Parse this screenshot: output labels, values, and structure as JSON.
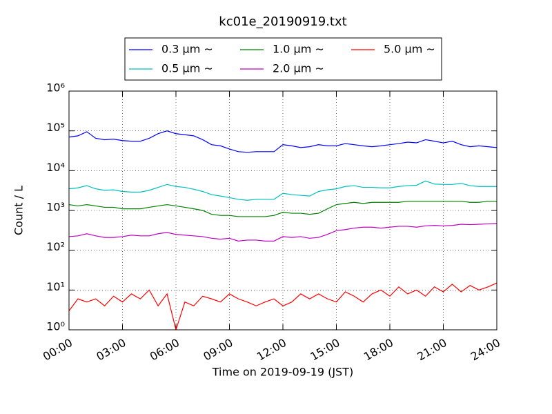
{
  "chart_data": {
    "type": "line",
    "title": "kc01e_20190919.txt",
    "xlabel": "Time on 2019-09-19 (JST)",
    "ylabel": "Count / L",
    "yscale": "log",
    "grid": true,
    "legend": "top",
    "x": [
      0,
      0.5,
      1,
      1.5,
      2,
      2.5,
      3,
      3.5,
      4,
      4.5,
      5,
      5.5,
      6,
      6.5,
      7,
      7.5,
      8,
      8.5,
      9,
      9.5,
      10,
      10.5,
      11,
      11.5,
      12,
      12.5,
      13,
      13.5,
      14,
      14.5,
      15,
      15.5,
      16,
      16.5,
      17,
      17.5,
      18,
      18.5,
      19,
      19.5,
      20,
      20.5,
      21,
      21.5,
      22,
      22.5,
      23,
      23.5,
      24
    ],
    "xlim": [
      0,
      24
    ],
    "xticks": [
      {
        "value": 0,
        "label": "00:00"
      },
      {
        "value": 3,
        "label": "03:00"
      },
      {
        "value": 6,
        "label": "06:00"
      },
      {
        "value": 9,
        "label": "09:00"
      },
      {
        "value": 12,
        "label": "12:00"
      },
      {
        "value": 15,
        "label": "15:00"
      },
      {
        "value": 18,
        "label": "18:00"
      },
      {
        "value": 21,
        "label": "21:00"
      },
      {
        "value": 24,
        "label": "24:00"
      }
    ],
    "ylim": [
      1,
      1000000
    ],
    "yticks": [
      {
        "value": 1,
        "label": "10⁰"
      },
      {
        "value": 10,
        "label": "10¹"
      },
      {
        "value": 100,
        "label": "10²"
      },
      {
        "value": 1000,
        "label": "10³"
      },
      {
        "value": 10000,
        "label": "10⁴"
      },
      {
        "value": 100000,
        "label": "10⁵"
      },
      {
        "value": 1000000,
        "label": "10⁶"
      }
    ],
    "series": [
      {
        "name": "0.3 μm ∼",
        "color": "#0000ff",
        "values": [
          70000,
          75000,
          95000,
          65000,
          60000,
          62000,
          57000,
          55000,
          55000,
          65000,
          85000,
          100000,
          85000,
          80000,
          75000,
          60000,
          45000,
          42000,
          35000,
          30000,
          29000,
          30000,
          30000,
          30000,
          45000,
          42000,
          38000,
          40000,
          45000,
          42000,
          42000,
          48000,
          45000,
          42000,
          40000,
          42000,
          45000,
          48000,
          52000,
          50000,
          60000,
          55000,
          50000,
          55000,
          45000,
          40000,
          42000,
          40000,
          38000
        ]
      },
      {
        "name": "0.5 μm ∼",
        "color": "#00bfbf",
        "values": [
          3500,
          3700,
          4200,
          3500,
          3200,
          3300,
          3000,
          2900,
          2900,
          3200,
          3800,
          4500,
          4000,
          3800,
          3400,
          3000,
          2500,
          2300,
          2100,
          1900,
          1800,
          1900,
          1900,
          1900,
          2700,
          2500,
          2400,
          2300,
          3000,
          3300,
          3500,
          4000,
          4200,
          3800,
          3800,
          3700,
          3700,
          4000,
          4200,
          4300,
          5500,
          4600,
          4500,
          4500,
          4800,
          4200,
          4000,
          4000,
          4000
        ]
      },
      {
        "name": "1.0 μm ∼",
        "color": "#008000",
        "values": [
          1400,
          1300,
          1400,
          1300,
          1200,
          1200,
          1100,
          1100,
          1100,
          1200,
          1300,
          1400,
          1300,
          1200,
          1100,
          1000,
          800,
          750,
          750,
          700,
          700,
          700,
          700,
          750,
          900,
          850,
          850,
          800,
          850,
          1100,
          1400,
          1500,
          1600,
          1500,
          1600,
          1600,
          1600,
          1600,
          1700,
          1700,
          1700,
          1700,
          1700,
          1700,
          1700,
          1600,
          1600,
          1700,
          1700
        ]
      },
      {
        "name": "2.0 μm ∼",
        "color": "#bf00bf",
        "values": [
          220,
          230,
          260,
          230,
          210,
          210,
          220,
          240,
          230,
          230,
          260,
          280,
          250,
          240,
          230,
          220,
          200,
          190,
          200,
          170,
          180,
          180,
          170,
          170,
          220,
          210,
          220,
          200,
          210,
          250,
          310,
          330,
          360,
          380,
          380,
          360,
          380,
          400,
          400,
          380,
          410,
          420,
          410,
          420,
          450,
          440,
          450,
          460,
          470
        ]
      },
      {
        "name": "5.0 μm ∼",
        "color": "#ff0000",
        "values": [
          3,
          6,
          5,
          6,
          4,
          7,
          5,
          8,
          6,
          10,
          4,
          8,
          1,
          5,
          4,
          7,
          6,
          5,
          8,
          6,
          5,
          4,
          5,
          6,
          4,
          5,
          8,
          6,
          8,
          6,
          5,
          9,
          7,
          5,
          8,
          10,
          7,
          12,
          8,
          10,
          7,
          12,
          9,
          14,
          9,
          13,
          10,
          12,
          15
        ]
      }
    ]
  }
}
